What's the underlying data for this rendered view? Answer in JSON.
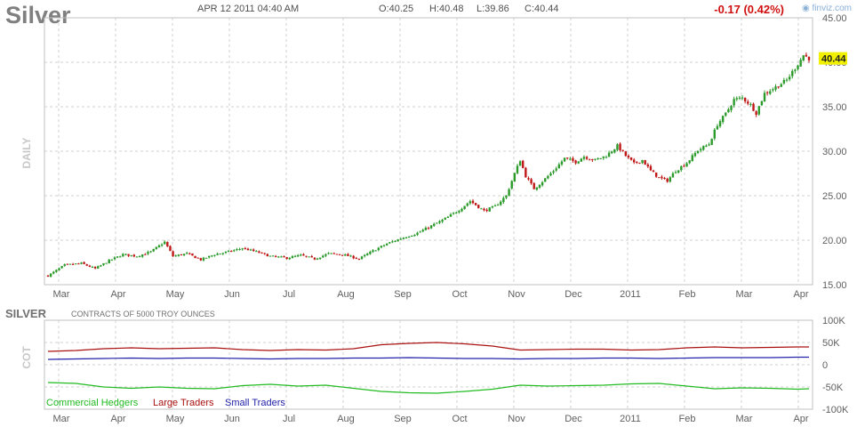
{
  "header": {
    "symbol": "Silver",
    "datetime": "APR 12 2011 04:40 AM",
    "open": "O:40.25",
    "high": "H:40.48",
    "low": "L:39.86",
    "close": "C:40.44",
    "change": "-0.17 (0.42%)",
    "brand": "finviz.com"
  },
  "colors": {
    "up": "#2a9a2a",
    "down": "#c01818",
    "grid": "#d0d0d0",
    "label": "#606060",
    "last_price_bg": "#f0f000",
    "commercial": "#22bb22",
    "large": "#aa1111",
    "small": "#2222aa"
  },
  "chart_data": [
    {
      "type": "candlestick",
      "ylabel": "DAILY",
      "ylim": [
        15,
        45
      ],
      "yticks": [
        "15.00",
        "20.00",
        "25.00",
        "30.00",
        "35.00",
        "40.00",
        "45.00"
      ],
      "months": [
        "Mar",
        "Apr",
        "May",
        "Jun",
        "Jul",
        "Aug",
        "Sep",
        "Oct",
        "Nov",
        "Dec",
        "2011",
        "Feb",
        "Mar",
        "Apr"
      ],
      "last_price": "40.44",
      "anchors": [
        [
          0,
          16.0
        ],
        [
          6,
          17.2
        ],
        [
          12,
          17.4
        ],
        [
          17,
          16.8
        ],
        [
          22,
          17.7
        ],
        [
          27,
          18.4
        ],
        [
          32,
          18.2
        ],
        [
          37,
          18.7
        ],
        [
          42,
          19.8
        ],
        [
          45,
          18.2
        ],
        [
          50,
          18.5
        ],
        [
          55,
          17.8
        ],
        [
          60,
          18.4
        ],
        [
          65,
          18.7
        ],
        [
          70,
          19.1
        ],
        [
          75,
          18.7
        ],
        [
          80,
          18.2
        ],
        [
          86,
          18.0
        ],
        [
          91,
          18.3
        ],
        [
          96,
          17.9
        ],
        [
          101,
          18.5
        ],
        [
          106,
          18.4
        ],
        [
          112,
          17.9
        ],
        [
          117,
          18.8
        ],
        [
          122,
          19.6
        ],
        [
          128,
          20.3
        ],
        [
          133,
          20.8
        ],
        [
          138,
          21.6
        ],
        [
          143,
          22.4
        ],
        [
          148,
          23.4
        ],
        [
          152,
          24.4
        ],
        [
          157,
          23.3
        ],
        [
          161,
          23.8
        ],
        [
          165,
          25.0
        ],
        [
          168,
          27.5
        ],
        [
          170,
          29.0
        ],
        [
          172,
          27.2
        ],
        [
          175,
          25.8
        ],
        [
          178,
          26.6
        ],
        [
          182,
          27.8
        ],
        [
          186,
          29.2
        ],
        [
          190,
          28.8
        ],
        [
          193,
          29.4
        ],
        [
          197,
          29.0
        ],
        [
          201,
          29.5
        ],
        [
          205,
          30.6
        ],
        [
          208,
          29.5
        ],
        [
          211,
          28.6
        ],
        [
          214,
          29.0
        ],
        [
          217,
          27.8
        ],
        [
          220,
          27.0
        ],
        [
          223,
          26.7
        ],
        [
          226,
          27.8
        ],
        [
          230,
          28.7
        ],
        [
          234,
          30.1
        ],
        [
          238,
          30.8
        ],
        [
          241,
          33.0
        ],
        [
          244,
          34.2
        ],
        [
          247,
          35.8
        ],
        [
          250,
          36.0
        ],
        [
          253,
          35.2
        ],
        [
          255,
          34.3
        ],
        [
          258,
          36.5
        ],
        [
          262,
          37.2
        ],
        [
          266,
          38.0
        ],
        [
          270,
          39.8
        ],
        [
          272,
          40.8
        ],
        [
          274,
          40.44
        ]
      ]
    },
    {
      "type": "line",
      "title": "SILVER",
      "subtitle": "CONTRACTS OF 5000 TROY OUNCES",
      "ylabel": "COT",
      "ylim": [
        -100000,
        100000
      ],
      "yticks": [
        "100K",
        "50K",
        "0",
        "-50K",
        "-100K"
      ],
      "months": [
        "Mar",
        "Apr",
        "May",
        "Jun",
        "Jul",
        "Aug",
        "Sep",
        "Oct",
        "Nov",
        "Dec",
        "2011",
        "Feb",
        "Mar",
        "Apr"
      ],
      "series": [
        {
          "name": "Commercial Hedgers",
          "x": [
            0,
            10,
            20,
            30,
            40,
            50,
            60,
            70,
            80,
            90,
            100,
            110,
            120,
            130,
            140,
            150,
            160,
            170,
            180,
            190,
            200,
            210,
            220,
            230,
            240,
            250,
            260,
            270,
            274
          ],
          "y": [
            -40000,
            -42000,
            -50000,
            -53000,
            -50000,
            -53000,
            -54000,
            -47000,
            -44000,
            -48000,
            -46000,
            -53000,
            -60000,
            -63000,
            -64000,
            -60000,
            -55000,
            -46000,
            -48000,
            -47000,
            -46000,
            -43000,
            -42000,
            -48000,
            -54000,
            -52000,
            -53000,
            -55000,
            -54000
          ]
        },
        {
          "name": "Large Traders",
          "x": [
            0,
            10,
            20,
            30,
            40,
            50,
            60,
            70,
            80,
            90,
            100,
            110,
            120,
            130,
            140,
            150,
            160,
            170,
            180,
            190,
            200,
            210,
            220,
            230,
            240,
            250,
            260,
            270,
            274
          ],
          "y": [
            30000,
            32000,
            36000,
            38000,
            36000,
            37000,
            38000,
            34000,
            32000,
            34000,
            33000,
            36000,
            45000,
            48000,
            50000,
            47000,
            42000,
            33000,
            34000,
            35000,
            35000,
            33000,
            34000,
            38000,
            40000,
            38000,
            39000,
            40000,
            40000
          ]
        },
        {
          "name": "Small Traders",
          "x": [
            0,
            10,
            20,
            30,
            40,
            50,
            60,
            70,
            80,
            90,
            100,
            110,
            120,
            130,
            140,
            150,
            160,
            170,
            180,
            190,
            200,
            210,
            220,
            230,
            240,
            250,
            260,
            270,
            274
          ],
          "y": [
            12000,
            13000,
            14000,
            15000,
            14000,
            15000,
            15000,
            14000,
            13000,
            14000,
            14000,
            15000,
            15000,
            16000,
            15000,
            14000,
            14000,
            13000,
            14000,
            14000,
            15000,
            15000,
            14000,
            15000,
            16000,
            16000,
            16000,
            17000,
            17000
          ]
        }
      ]
    }
  ]
}
